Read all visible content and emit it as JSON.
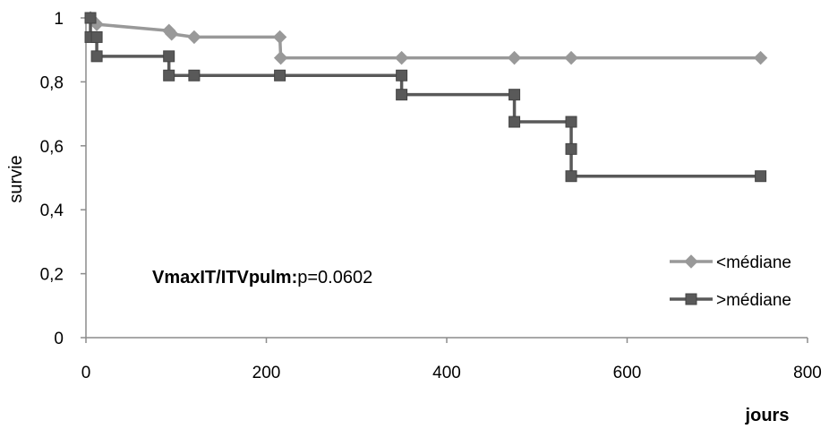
{
  "chart_data": {
    "type": "line",
    "step": true,
    "xlabel": "jours",
    "ylabel": "survie",
    "xlim": [
      0,
      800
    ],
    "ylim": [
      0,
      1
    ],
    "x_ticks": [
      {
        "value": 0,
        "label": "0"
      },
      {
        "value": 200,
        "label": "200"
      },
      {
        "value": 400,
        "label": "400"
      },
      {
        "value": 600,
        "label": "600"
      },
      {
        "value": 800,
        "label": "800"
      }
    ],
    "y_ticks": [
      {
        "value": 0,
        "label": "0"
      },
      {
        "value": 0.2,
        "label": "0,2"
      },
      {
        "value": 0.4,
        "label": "0,4"
      },
      {
        "value": 0.6,
        "label": "0,6"
      },
      {
        "value": 0.8,
        "label": "0,8"
      },
      {
        "value": 1,
        "label": "1"
      }
    ],
    "grid": false,
    "legend_position": "right",
    "annotation": {
      "bold": "VmaxIT/ITVpulm:",
      "normal": "p=0.0602"
    },
    "series": [
      {
        "name": "<médiane",
        "color": "#999999",
        "marker": "diamond",
        "points": [
          {
            "x": 5,
            "y": 1.0
          },
          {
            "x": 12,
            "y": 0.98
          },
          {
            "x": 92,
            "y": 0.96
          },
          {
            "x": 95,
            "y": 0.95
          },
          {
            "x": 120,
            "y": 0.94
          },
          {
            "x": 215,
            "y": 0.94
          },
          {
            "x": 216,
            "y": 0.875
          },
          {
            "x": 350,
            "y": 0.875
          },
          {
            "x": 475,
            "y": 0.875
          },
          {
            "x": 538,
            "y": 0.875
          },
          {
            "x": 748,
            "y": 0.875
          }
        ]
      },
      {
        "name": ">médiane",
        "color": "#595959",
        "marker": "square",
        "points": [
          {
            "x": 5,
            "y": 1.0
          },
          {
            "x": 5,
            "y": 0.94
          },
          {
            "x": 12,
            "y": 0.94
          },
          {
            "x": 12,
            "y": 0.88
          },
          {
            "x": 92,
            "y": 0.88
          },
          {
            "x": 92,
            "y": 0.82
          },
          {
            "x": 120,
            "y": 0.82
          },
          {
            "x": 215,
            "y": 0.82
          },
          {
            "x": 350,
            "y": 0.82
          },
          {
            "x": 350,
            "y": 0.76
          },
          {
            "x": 475,
            "y": 0.76
          },
          {
            "x": 475,
            "y": 0.675
          },
          {
            "x": 538,
            "y": 0.675
          },
          {
            "x": 538,
            "y": 0.59
          },
          {
            "x": 538,
            "y": 0.505
          },
          {
            "x": 748,
            "y": 0.505
          }
        ]
      }
    ]
  }
}
